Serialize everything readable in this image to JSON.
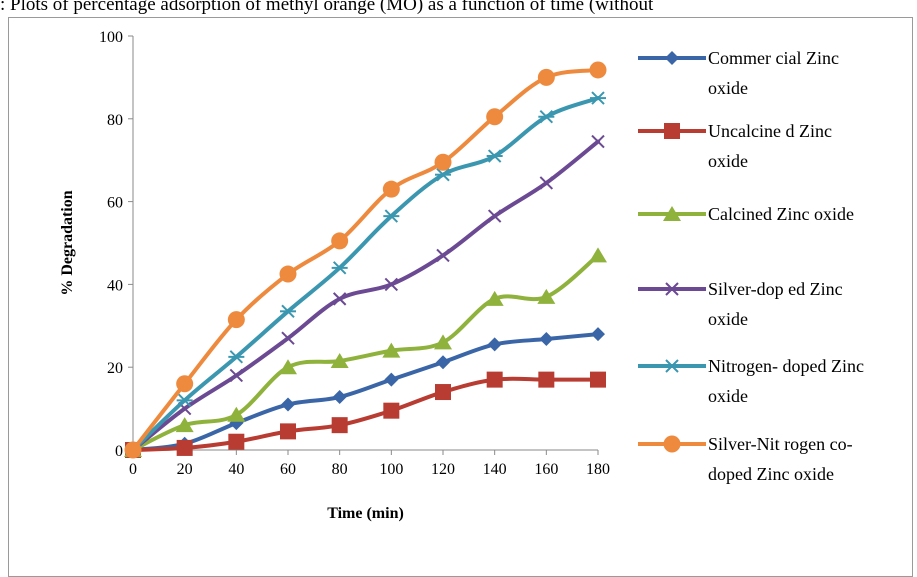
{
  "caption": ": Plots of percentage adsorption of methyl orange (MO) as a function of time (without",
  "chart_data": {
    "type": "line",
    "xlabel": "Time (min)",
    "ylabel": "% Degradation",
    "xlim": [
      0,
      180
    ],
    "ylim": [
      0,
      100
    ],
    "x_ticks": [
      0,
      20,
      40,
      60,
      80,
      100,
      120,
      140,
      160,
      180
    ],
    "y_ticks": [
      0,
      20,
      40,
      60,
      80,
      100
    ],
    "grid": false,
    "legend_position": "right",
    "x": [
      0,
      20,
      40,
      60,
      80,
      100,
      120,
      140,
      160,
      180
    ],
    "series": [
      {
        "name_lines": [
          "Commer cial Zinc",
          "oxide"
        ],
        "color": "#3a66a8",
        "marker": "diamond",
        "values": [
          0,
          1.5,
          6.5,
          11,
          12.8,
          17,
          21.2,
          25.5,
          26.8,
          28
        ]
      },
      {
        "name_lines": [
          "Uncalcine d Zinc",
          "oxide"
        ],
        "color": "#b83c32",
        "marker": "square",
        "values": [
          0,
          0.5,
          2,
          4.5,
          6,
          9.5,
          14,
          17,
          17,
          17
        ]
      },
      {
        "name_lines": [
          "Calcined Zinc oxide"
        ],
        "color": "#8fb23c",
        "marker": "triangle",
        "values": [
          0,
          6,
          8.5,
          20,
          21.5,
          24,
          26,
          36.5,
          37,
          47
        ]
      },
      {
        "name_lines": [
          "Silver-dop ed Zinc",
          "oxide"
        ],
        "color": "#6b4a93",
        "marker": "x",
        "values": [
          0,
          10,
          18,
          27,
          36.5,
          40,
          47,
          56.5,
          64.5,
          74.5
        ]
      },
      {
        "name_lines": [
          "Nitrogen- doped Zinc",
          "oxide"
        ],
        "color": "#3b97b0",
        "marker": "asterisk",
        "values": [
          0,
          12,
          22.5,
          33.5,
          44,
          56.5,
          66.5,
          71,
          80.5,
          85
        ]
      },
      {
        "name_lines": [
          "Silver-Nit rogen co-",
          "doped  Zinc oxide"
        ],
        "color": "#ee8a3e",
        "marker": "circle",
        "values": [
          0,
          16,
          31.5,
          42.5,
          50.5,
          63,
          69.5,
          80.5,
          90,
          91.8
        ]
      }
    ]
  }
}
